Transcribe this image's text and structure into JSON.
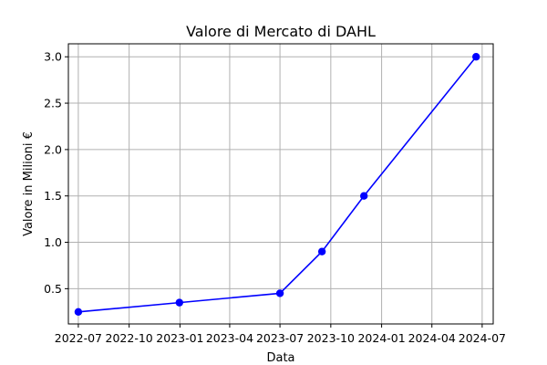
{
  "chart_data": {
    "type": "line",
    "title": "Valore di Mercato di DAHL",
    "xlabel": "Data",
    "ylabel": "Valore in Milioni €",
    "grid": true,
    "xlim": [
      "2022-06-13",
      "2024-07-21"
    ],
    "ylim": [
      0.12,
      3.14
    ],
    "x_ticks": [
      {
        "date": "2022-07-01",
        "label": "2022-07"
      },
      {
        "date": "2022-10-01",
        "label": "2022-10"
      },
      {
        "date": "2023-01-01",
        "label": "2023-01"
      },
      {
        "date": "2023-04-01",
        "label": "2023-04"
      },
      {
        "date": "2023-07-01",
        "label": "2023-07"
      },
      {
        "date": "2023-10-01",
        "label": "2023-10"
      },
      {
        "date": "2024-01-01",
        "label": "2024-01"
      },
      {
        "date": "2024-04-01",
        "label": "2024-04"
      },
      {
        "date": "2024-07-01",
        "label": "2024-07"
      }
    ],
    "y_ticks": [
      {
        "value": 0.5,
        "label": "0.5"
      },
      {
        "value": 1.0,
        "label": "1.0"
      },
      {
        "value": 1.5,
        "label": "1.5"
      },
      {
        "value": 2.0,
        "label": "2.0"
      },
      {
        "value": 2.5,
        "label": "2.5"
      },
      {
        "value": 3.0,
        "label": "3.0"
      }
    ],
    "series": [
      {
        "color": "#0000ff",
        "marker": "circle",
        "points": [
          {
            "x": "2022-07-01",
            "y": 0.25
          },
          {
            "x": "2022-12-31",
            "y": 0.35
          },
          {
            "x": "2023-07-01",
            "y": 0.45
          },
          {
            "x": "2023-09-15",
            "y": 0.9
          },
          {
            "x": "2023-11-30",
            "y": 1.5
          },
          {
            "x": "2024-06-20",
            "y": 3.0
          }
        ]
      }
    ]
  }
}
